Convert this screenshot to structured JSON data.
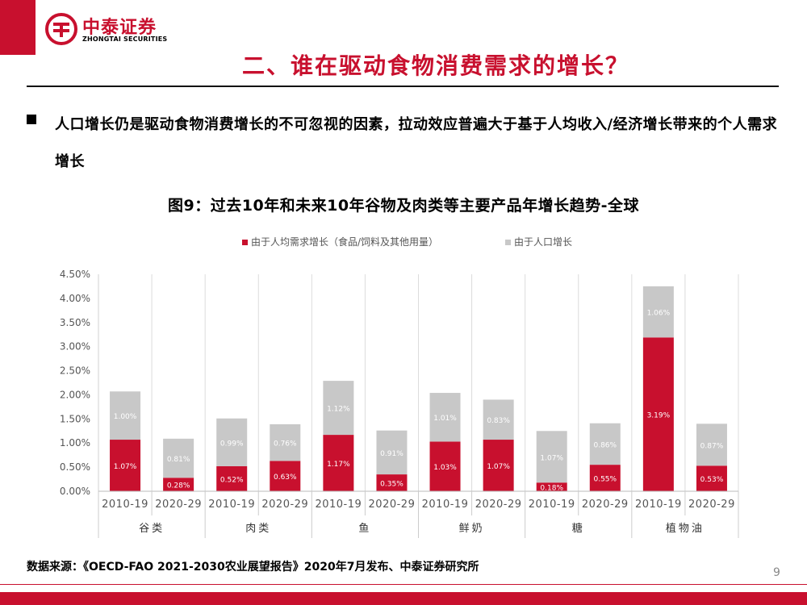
{
  "brand": {
    "name_cn": "中泰证券",
    "name_en": "ZHONGTAI SECURITIES",
    "accent": "#c8102e"
  },
  "slide": {
    "title": "二、谁在驱动食物消费需求的增长？",
    "bullet": "人口增长仍是驱动食物消费增长的不可忽视的因素，拉动效应普遍大于基于人均收入/经济增长带来的个人需求增长",
    "chart_title": "图9：过去10年和未来10年谷物及肉类等主要产品年增长趋势-全球",
    "source": "数据来源：《OECD-FAO 2021-2030农业展望报告》2020年7月发布、中泰证券研究所",
    "page_number": "9"
  },
  "chart_data": {
    "type": "bar",
    "stacked": true,
    "groups": [
      "谷类",
      "肉类",
      "鱼",
      "鲜奶",
      "糖",
      "植物油"
    ],
    "periods": [
      "2010-19",
      "2020-29"
    ],
    "categories": [
      "2010-19",
      "2020-29",
      "2010-19",
      "2020-29",
      "2010-19",
      "2020-29",
      "2010-19",
      "2020-29",
      "2010-19",
      "2020-29",
      "2010-19",
      "2020-29"
    ],
    "series": [
      {
        "name": "由于人均需求增长（食品/饲料及其他用量）",
        "color": "#c8102e",
        "values": [
          1.07,
          0.28,
          0.52,
          0.63,
          1.17,
          0.35,
          1.03,
          1.07,
          0.18,
          0.55,
          3.19,
          0.53
        ],
        "labels": [
          "1.07%",
          "0.28%",
          "0.52%",
          "0.63%",
          "1.17%",
          "0.35%",
          "1.03%",
          "1.07%",
          "0.18%",
          "0.55%",
          "3.19%",
          "0.53%"
        ]
      },
      {
        "name": "由于人口增长",
        "color": "#c8c8c8",
        "values": [
          1.0,
          0.81,
          0.99,
          0.76,
          1.12,
          0.91,
          1.01,
          0.83,
          1.07,
          0.86,
          1.06,
          0.87
        ],
        "labels": [
          "1.00%",
          "0.81%",
          "0.99%",
          "0.76%",
          "1.12%",
          "0.91%",
          "1.01%",
          "0.83%",
          "1.07%",
          "0.86%",
          "1.06%",
          "0.87%"
        ]
      }
    ],
    "ylim": [
      0,
      4.5
    ],
    "yticks": [
      "0.00%",
      "0.50%",
      "1.00%",
      "1.50%",
      "2.00%",
      "2.50%",
      "3.00%",
      "3.50%",
      "4.00%",
      "4.50%"
    ],
    "ytick_values": [
      0,
      0.5,
      1.0,
      1.5,
      2.0,
      2.5,
      3.0,
      3.5,
      4.0,
      4.5
    ],
    "grid": true,
    "legend_position": "top-center"
  }
}
